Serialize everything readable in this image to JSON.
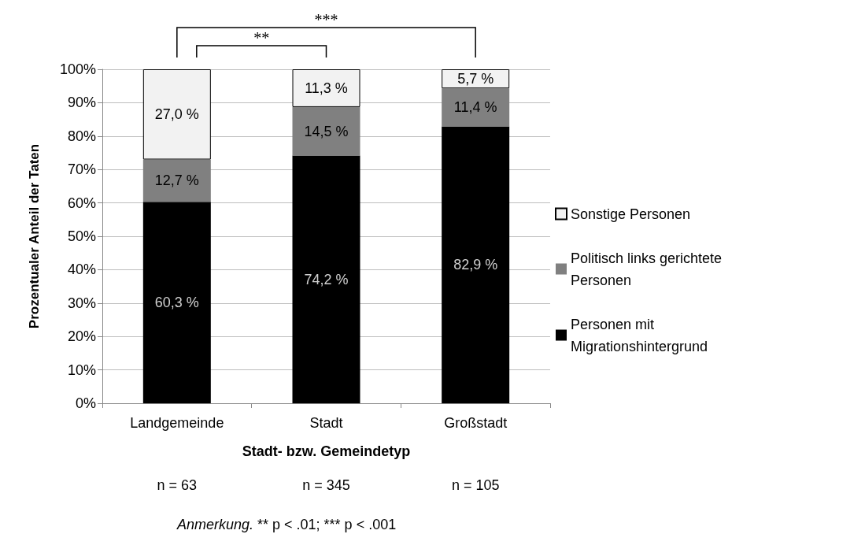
{
  "chart_data": {
    "type": "bar",
    "stacked": true,
    "xlabel": "Stadt- bzw. Gemeindetyp",
    "ylabel": "Prozentualer Anteil der Taten",
    "categories": [
      "Landgemeinde",
      "Stadt",
      "Großstadt"
    ],
    "series": [
      {
        "name": "Personen mit Migrationshintergrund",
        "color": "#000000",
        "values": [
          60.3,
          74.2,
          82.9
        ],
        "value_labels": [
          "60,3 %",
          "74,2 %",
          "82,9 %"
        ]
      },
      {
        "name": "Politisch links gerichtete Personen",
        "color": "#808080",
        "values": [
          12.7,
          14.5,
          11.4
        ],
        "value_labels": [
          "12,7 %",
          "14,5 %",
          "11,4 %"
        ]
      },
      {
        "name": "Sonstige Personen",
        "color": "#f2f2f2",
        "values": [
          27.0,
          11.3,
          5.7
        ],
        "value_labels": [
          "27,0 %",
          "11,3 %",
          "5,7 %"
        ]
      }
    ],
    "ylim": [
      0,
      100
    ],
    "yticks": [
      {
        "value": 0,
        "label": "0%"
      },
      {
        "value": 10,
        "label": "10%"
      },
      {
        "value": 20,
        "label": "20%"
      },
      {
        "value": 30,
        "label": "30%"
      },
      {
        "value": 40,
        "label": "40%"
      },
      {
        "value": 50,
        "label": "50%"
      },
      {
        "value": 60,
        "label": "60%"
      },
      {
        "value": 70,
        "label": "70%"
      },
      {
        "value": 80,
        "label": "80%"
      },
      {
        "value": 90,
        "label": "90%"
      },
      {
        "value": 100,
        "label": "100%"
      }
    ],
    "grid": "y",
    "legend": "right",
    "annotations": [
      "**",
      "***",
      "n = 63",
      "n = 345",
      "n = 105",
      "Anmerkung. ** p < .01; *** p < .001"
    ]
  }
}
